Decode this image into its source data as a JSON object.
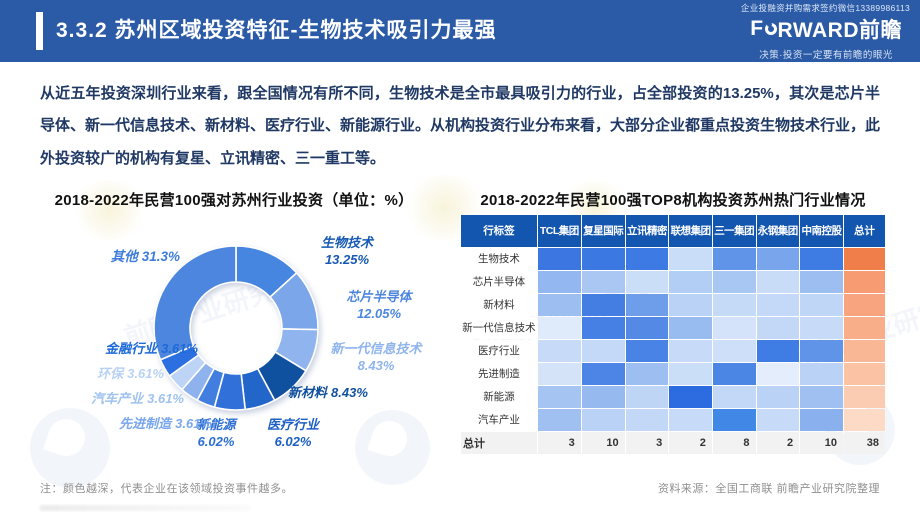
{
  "header": {
    "micro_text": "企业投融资并购需求签约微信13389986113",
    "title": "3.3.2 苏州区域投资特征-生物技术吸引力最强",
    "logo": {
      "full": "FORWARD前瞻",
      "pre": "F",
      "post": "RWARD前瞻",
      "tagline": "决策·投资一定要有前瞻的眼光"
    },
    "background_color": "#2B5AA6"
  },
  "intro_paragraph": "从近五年投资深圳行业来看，跟全国情况有所不同，生物技术是全市最具吸引力的行业，占全部投资的13.25%，其次是芯片半导体、新一代信息技术、新材料、医疗行业、新能源行业。从机构投资行业分布来看，大部分企业都重点投资生物技术行业，此外投资较广的机构有复星、立讯精密、三一重工等。",
  "chart_data": [
    {
      "type": "pie",
      "subtype": "donut",
      "title": "2018-2022年民营100强对苏州行业投资（单位：%）",
      "unit": "%",
      "legend_position": "around",
      "slices": [
        {
          "id": "biotech",
          "name": "生物技术",
          "value": 13.25,
          "display": "13.25%",
          "color": "#4685E0",
          "label_color": "#1659B2"
        },
        {
          "id": "chip",
          "name": "芯片半导体",
          "value": 12.05,
          "display": "12.05%",
          "color": "#7CA6EA",
          "label_color": "#4C86DE"
        },
        {
          "id": "nextgen",
          "name": "新一代信息技术",
          "value": 8.43,
          "display": "8.43%",
          "color": "#8FB4EE",
          "label_color": "#8FB4EE"
        },
        {
          "id": "newmat",
          "name": "新材料",
          "value": 8.43,
          "display": "8.43%",
          "color": "#10519F",
          "label_color": "#10519F"
        },
        {
          "id": "medical",
          "name": "医疗行业",
          "value": 6.02,
          "display": "6.02%",
          "color": "#2366CA",
          "label_color": "#1C5FC4"
        },
        {
          "id": "newenergy",
          "name": "新能源",
          "value": 6.02,
          "display": "6.02%",
          "color": "#3170D8",
          "label_color": "#2D6FD4"
        },
        {
          "id": "advman",
          "name": "先进制造",
          "value": 3.61,
          "display": "3.61%",
          "color": "#417EE0",
          "label_color": "#7AA6EC"
        },
        {
          "id": "auto",
          "name": "汽车产业",
          "value": 3.61,
          "display": "3.61%",
          "color": "#8EB2EE",
          "label_color": "#9FC2F0"
        },
        {
          "id": "env",
          "name": "环保",
          "value": 3.61,
          "display": "3.61%",
          "color": "#BDD4F6",
          "label_color": "#B9D2F4"
        },
        {
          "id": "finance",
          "name": "金融行业",
          "value": 3.61,
          "display": "3.61%",
          "color": "#2B6FE0",
          "label_color": "#1E6AD8"
        },
        {
          "id": "others",
          "name": "其他",
          "value": 31.3,
          "display": "31.3%",
          "color": "#4C86DE",
          "label_color": "#3F7DDA"
        }
      ]
    },
    {
      "type": "heatmap",
      "title": "2018-2022年民营100强TOP8机构投资苏州热门行业情况",
      "corner_label": "行标签",
      "columns": [
        "TCL集团",
        "复星国际",
        "立讯精密",
        "联想集团",
        "三一集团",
        "永钢集团",
        "中南控股"
      ],
      "total_column_label": "总计",
      "header_bg": "#1356B0",
      "rows": [
        {
          "label": "生物技术",
          "cell_colors": [
            "#3B76E1",
            "#3C78E2",
            "#3E7AE3",
            "#C9DDF8",
            "#5F94E9",
            "#79A5EC",
            "#3E7BE3"
          ],
          "total_color": "#F07E4B"
        },
        {
          "label": "芯片半导体",
          "cell_colors": [
            "#93B7F0",
            "#AAC7F3",
            "#CBDEF8",
            "#B2CEF5",
            "#A9C7F3",
            "#C8DCF8",
            "#9CBEF1"
          ],
          "total_color": "#F79B72"
        },
        {
          "label": "新材料",
          "cell_colors": [
            "#9CBEF1",
            "#447EE3",
            "#6E9EEA",
            "#BAD2F6",
            "#C5DAF7",
            "#C3D9F7",
            "#BFD6F6"
          ],
          "total_color": "#F8A57F"
        },
        {
          "label": "新一代信息技术",
          "cell_colors": [
            "#DFEAFB",
            "#4680E4",
            "#548AE6",
            "#98BBF0",
            "#D4E3F9",
            "#C3D8F7",
            "#C7DBF8"
          ],
          "total_color": "#F9AE8A"
        },
        {
          "label": "医疗行业",
          "cell_colors": [
            "#C7DBF8",
            "#C3D9F7",
            "#4883E5",
            "#C7DBF8",
            "#CEE0F9",
            "#3F7CE4",
            "#5F94E9"
          ],
          "total_color": "#FAB795"
        },
        {
          "label": "先进制造",
          "cell_colors": [
            "#D5E3F9",
            "#4C85E5",
            "#9CBEF1",
            "#CBDEF8",
            "#4C86E5",
            "#E4EDFB",
            "#BAD2F6"
          ],
          "total_color": "#FBC2A4"
        },
        {
          "label": "新能源",
          "cell_colors": [
            "#A5C4F2",
            "#96BAF0",
            "#BED5F6",
            "#2C6BE0",
            "#C3D8F7",
            "#BAD2F6",
            "#9FC0F1"
          ],
          "total_color": "#FBCCB2"
        },
        {
          "label": "汽车产业",
          "cell_colors": [
            "#9FC0F1",
            "#BAD2F6",
            "#C3D8F7",
            "#C7DBF8",
            "#4187E6",
            "#C7DBF8",
            "#8AB0EE"
          ],
          "total_color": "#FCDAC6"
        }
      ],
      "totals_row": {
        "label": "总计",
        "values": [
          3,
          10,
          3,
          2,
          8,
          2,
          10
        ],
        "grand_total": 38
      }
    }
  ],
  "footnotes": {
    "note": "注：颜色越深，代表企业在该领域投资事件越多。",
    "source": "资料来源：全国工商联  前瞻产业研究院整理"
  },
  "watermark": {
    "text": "前瞻产业研究院"
  }
}
